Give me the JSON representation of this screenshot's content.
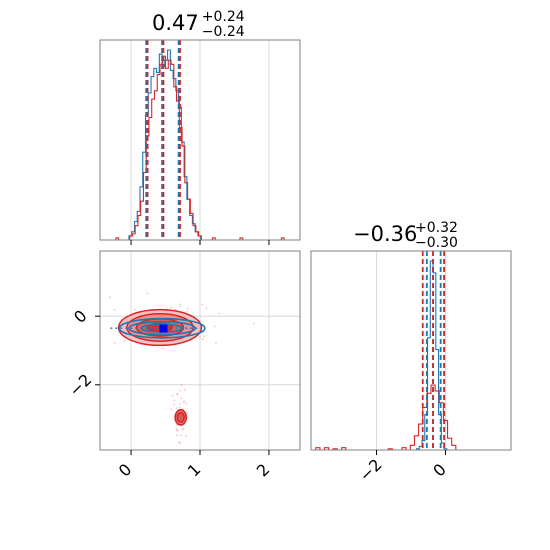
{
  "colors": {
    "series_a": "#1f77b4",
    "series_b": "#d62728",
    "grid": "#d9d9d9",
    "truth_marker": "#0000ff"
  },
  "chart_data": [
    {
      "type": "histogram",
      "panel": "top-left",
      "title": {
        "main": "0.47",
        "plus": "+0.24",
        "minus": "−0.24"
      },
      "xlim": [
        -0.45,
        2.45
      ],
      "xticks": [
        0,
        1,
        2
      ],
      "grid": true,
      "series": [
        {
          "color": "#1f77b4",
          "quantile_lines": [
            0.22,
            0.45,
            0.69
          ],
          "centers": [
            -0.01,
            0.03,
            0.07,
            0.11,
            0.15,
            0.19,
            0.23,
            0.27,
            0.31,
            0.35,
            0.39,
            0.43,
            0.47,
            0.51,
            0.55,
            0.59,
            0.63,
            0.67,
            0.71,
            0.75,
            0.79,
            0.83,
            0.87,
            0.91,
            0.95,
            0.99
          ],
          "counts": [
            2,
            4,
            9,
            14,
            26,
            43,
            61,
            72,
            80,
            84,
            82,
            91,
            85,
            88,
            93,
            83,
            79,
            73,
            65,
            48,
            31,
            20,
            12,
            8,
            4,
            2
          ]
        },
        {
          "color": "#d62728",
          "quantile_lines": [
            0.24,
            0.47,
            0.71
          ],
          "centers": [
            -0.2,
            0.0,
            0.04,
            0.08,
            0.12,
            0.16,
            0.2,
            0.24,
            0.28,
            0.32,
            0.36,
            0.4,
            0.44,
            0.48,
            0.52,
            0.56,
            0.6,
            0.64,
            0.68,
            0.72,
            0.76,
            0.8,
            0.84,
            0.88,
            0.92,
            0.96,
            1.0,
            1.2,
            1.6,
            2.2
          ],
          "counts": [
            1,
            2,
            3,
            7,
            12,
            19,
            33,
            51,
            60,
            69,
            73,
            81,
            86,
            90,
            84,
            88,
            86,
            75,
            68,
            55,
            46,
            28,
            20,
            13,
            7,
            4,
            2,
            1,
            1,
            1
          ]
        }
      ]
    },
    {
      "type": "contour",
      "panel": "bottom-left",
      "xlim": [
        -0.45,
        2.45
      ],
      "ylim": [
        -3.9,
        1.9
      ],
      "xticks": [
        0,
        1,
        2
      ],
      "yticks": [
        0,
        -2
      ],
      "xtick_labels": [
        "0",
        "1",
        "2"
      ],
      "ytick_labels": [
        "0",
        "−2"
      ],
      "grid": true,
      "truth_point": {
        "x": 0.47,
        "y": -0.36
      },
      "series": [
        {
          "color": "#d62728",
          "filled": true,
          "center": [
            0.42,
            -0.33
          ],
          "contour_radii": [
            [
              0.6,
              0.52
            ],
            [
              0.48,
              0.4
            ],
            [
              0.34,
              0.25
            ],
            [
              0.18,
              0.12
            ]
          ],
          "secondary_center": [
            0.72,
            -2.95
          ],
          "secondary_radii": [
            [
              0.08,
              0.22
            ],
            [
              0.05,
              0.14
            ]
          ]
        },
        {
          "color": "#1f77b4",
          "filled": false,
          "center": [
            0.45,
            -0.35
          ],
          "contour_radii": [
            [
              0.62,
              0.28
            ],
            [
              0.48,
              0.19
            ],
            [
              0.3,
              0.11
            ]
          ]
        }
      ]
    },
    {
      "type": "histogram",
      "panel": "bottom-right",
      "title": {
        "main": "−0.36",
        "plus": "+0.32",
        "minus": "−0.30"
      },
      "xlim": [
        -3.9,
        1.9
      ],
      "xticks": [
        -2,
        0
      ],
      "xtick_labels": [
        "−2",
        "0"
      ],
      "grid": true,
      "series": [
        {
          "color": "#1f77b4",
          "quantile_lines": [
            -0.54,
            -0.36,
            -0.14
          ],
          "centers": [
            -0.8,
            -0.72,
            -0.64,
            -0.56,
            -0.48,
            -0.4,
            -0.32,
            -0.24,
            -0.16,
            -0.08,
            0.0
          ],
          "counts": [
            1,
            3,
            8,
            30,
            95,
            160,
            150,
            85,
            30,
            6,
            1
          ]
        },
        {
          "color": "#d62728",
          "quantile_lines": [
            -0.66,
            -0.36,
            -0.04
          ],
          "centers": [
            -3.7,
            -3.45,
            -3.2,
            -2.95,
            -1.6,
            -1.2,
            -0.96,
            -0.84,
            -0.72,
            -0.6,
            -0.48,
            -0.36,
            -0.24,
            -0.12,
            0.0,
            0.12,
            0.24
          ],
          "counts": [
            2,
            2,
            1,
            2,
            1,
            2,
            4,
            12,
            22,
            36,
            48,
            55,
            50,
            40,
            25,
            10,
            4
          ]
        }
      ]
    }
  ]
}
